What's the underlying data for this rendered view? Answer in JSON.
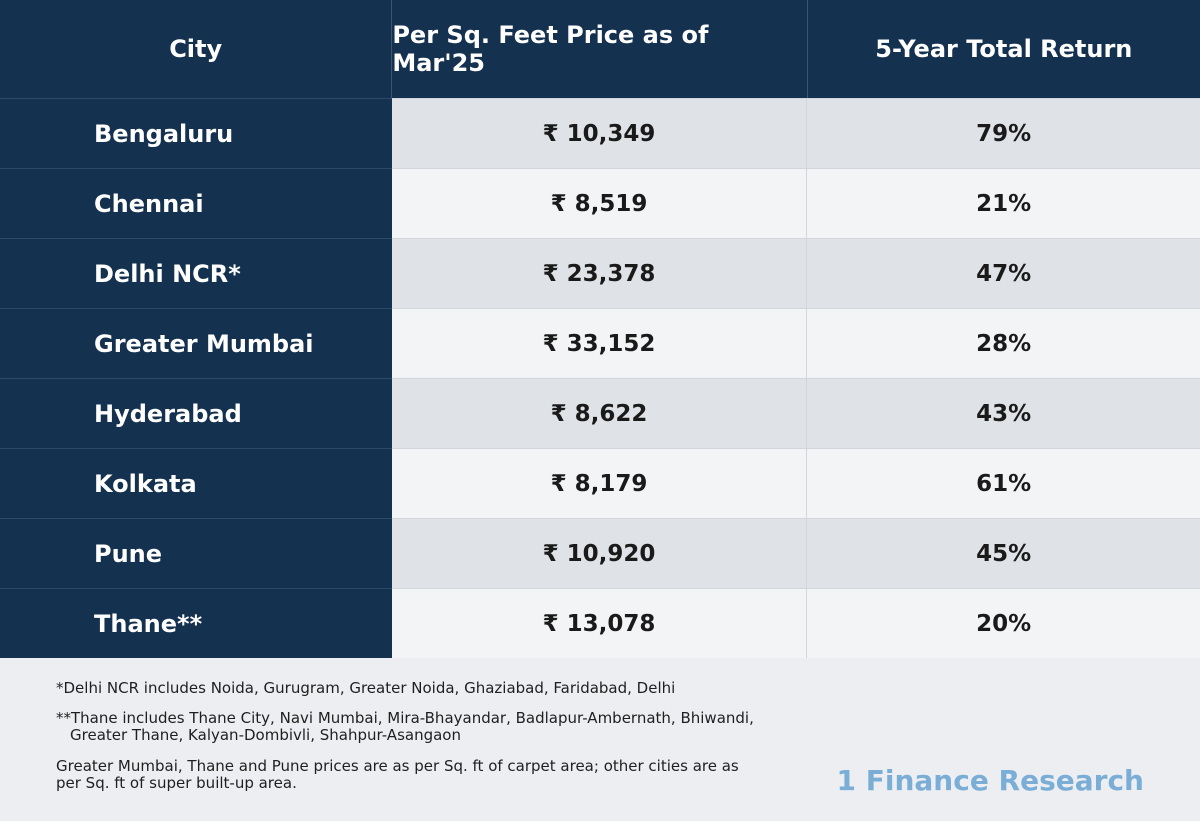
{
  "table": {
    "headers": [
      "City",
      "Per Sq. Feet Price as of Mar'25",
      "5-Year Total Return"
    ],
    "rows": [
      {
        "city": "Bengaluru",
        "price": "₹ 10,349",
        "return": "79%"
      },
      {
        "city": "Chennai",
        "price": "₹ 8,519",
        "return": "21%"
      },
      {
        "city": "Delhi NCR*",
        "price": "₹ 23,378",
        "return": "47%"
      },
      {
        "city": "Greater Mumbai",
        "price": "₹ 33,152",
        "return": "28%"
      },
      {
        "city": "Hyderabad",
        "price": "₹ 8,622",
        "return": "43%"
      },
      {
        "city": "Kolkata",
        "price": "₹ 8,179",
        "return": "61%"
      },
      {
        "city": "Pune",
        "price": "₹ 10,920",
        "return": "45%"
      },
      {
        "city": "Thane**",
        "price": "₹ 13,078",
        "return": "20%"
      }
    ]
  },
  "notes": {
    "delhi": "*Delhi NCR includes Noida, Gurugram, Greater Noida, Ghaziabad, Faridabad, Delhi",
    "thane_line1": "**Thane includes Thane City, Navi Mumbai, Mira-Bhayandar, Badlapur-Ambernath, Bhiwandi,",
    "thane_line2": "Greater Thane, Kalyan-Dombivli, Shahpur-Asangaon",
    "area_line1": "Greater Mumbai, Thane and Pune prices are as per Sq. ft of carpet area; other cities are as",
    "area_line2": "per Sq. ft of super built-up area."
  },
  "brand": "1 Finance Research",
  "colors": {
    "header_bg": "#14314f",
    "brand": "#7aaed6",
    "row_alt": "#dfe2e7",
    "row": "#f3f4f6"
  }
}
